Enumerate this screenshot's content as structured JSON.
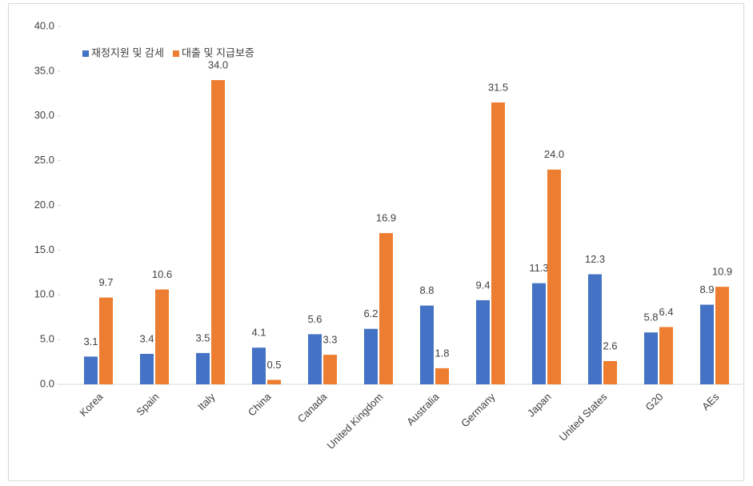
{
  "chart_data": {
    "type": "bar",
    "categories": [
      "Korea",
      "Spain",
      "Italy",
      "China",
      "Canada",
      "United Kingdom",
      "Australia",
      "Germany",
      "Japan",
      "United States",
      "G20",
      "AEs"
    ],
    "series": [
      {
        "name": "재정지원 및 감세",
        "color": "#4472c4",
        "values": [
          3.1,
          3.4,
          3.5,
          4.1,
          5.6,
          6.2,
          8.8,
          9.4,
          11.3,
          12.3,
          5.8,
          8.9
        ],
        "value_labels": [
          "3.1",
          "3.4",
          "3.5",
          "4.1",
          "5.6",
          "6.2",
          "8.8",
          "9.4",
          "11.3",
          "12.3",
          "5.8",
          "8.9"
        ]
      },
      {
        "name": "대출 및 지급보증",
        "color": "#ed7d31",
        "values": [
          9.7,
          10.6,
          34.0,
          0.5,
          3.3,
          16.9,
          1.8,
          31.5,
          24.0,
          2.6,
          6.4,
          10.9
        ],
        "value_labels": [
          "9.7",
          "10.6",
          "34.0",
          "0.5",
          "3.3",
          "16.9",
          "1.8",
          "31.5",
          "24.0",
          "2.6",
          "6.4",
          "10.9"
        ]
      }
    ],
    "ylim": [
      0,
      40
    ],
    "yticks": [
      {
        "value": 0,
        "label": "0.0"
      },
      {
        "value": 5,
        "label": "5.0"
      },
      {
        "value": 10,
        "label": "10.0"
      },
      {
        "value": 15,
        "label": "15.0"
      },
      {
        "value": 20,
        "label": "20.0"
      },
      {
        "value": 25,
        "label": "25.0"
      },
      {
        "value": 30,
        "label": "30.0"
      },
      {
        "value": 35,
        "label": "35.0"
      },
      {
        "value": 40,
        "label": "40.0"
      }
    ],
    "legend_position": "top-left"
  }
}
